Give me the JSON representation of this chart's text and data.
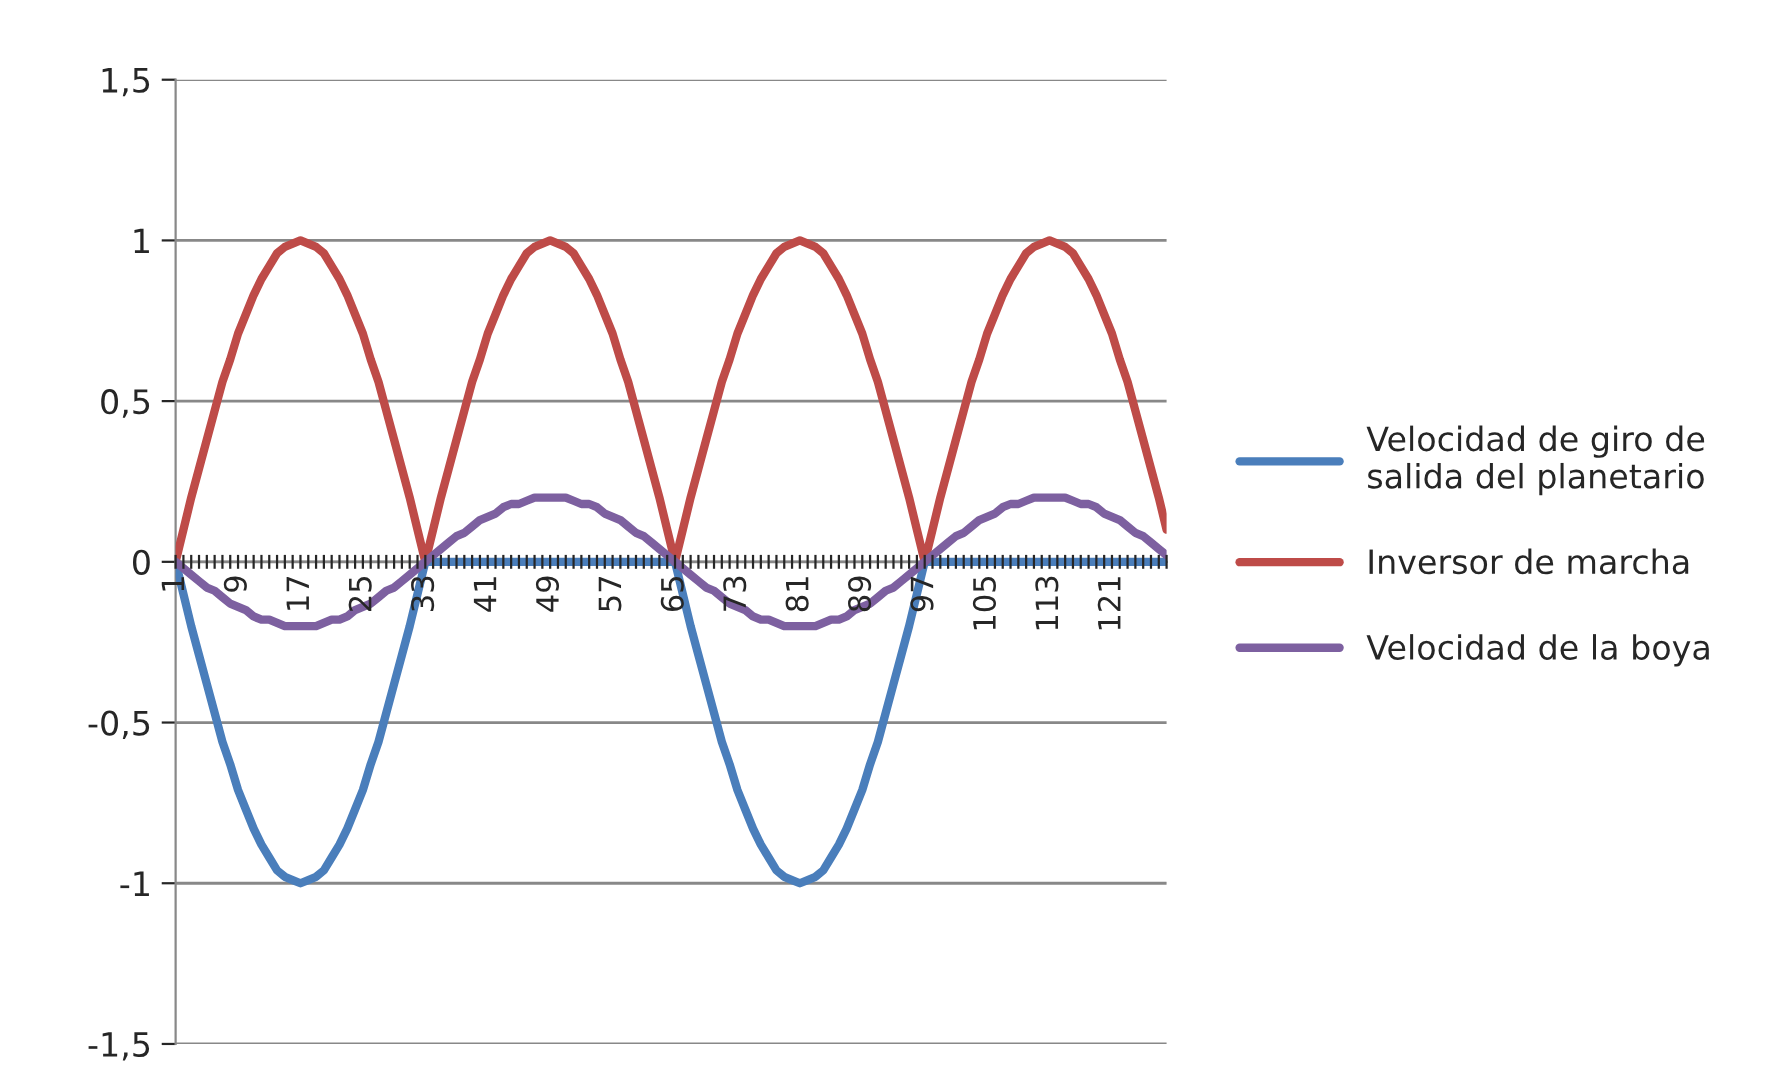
{
  "chart_data": {
    "type": "line",
    "categories": [
      "1",
      null,
      null,
      null,
      null,
      null,
      null,
      null,
      "9",
      null,
      null,
      null,
      null,
      null,
      null,
      null,
      "17",
      null,
      null,
      null,
      null,
      null,
      null,
      null,
      "25",
      null,
      null,
      null,
      null,
      null,
      null,
      null,
      "33",
      null,
      null,
      null,
      null,
      null,
      null,
      null,
      "41",
      null,
      null,
      null,
      null,
      null,
      null,
      null,
      "49",
      null,
      null,
      null,
      null,
      null,
      null,
      null,
      "57",
      null,
      null,
      null,
      null,
      null,
      null,
      null,
      "65",
      null,
      null,
      null,
      null,
      null,
      null,
      null,
      "73",
      null,
      null,
      null,
      null,
      null,
      null,
      null,
      "81",
      null,
      null,
      null,
      null,
      null,
      null,
      null,
      "89",
      null,
      null,
      null,
      null,
      null,
      null,
      null,
      "97",
      null,
      null,
      null,
      null,
      null,
      null,
      null,
      "105",
      null,
      null,
      null,
      null,
      null,
      null,
      null,
      "113",
      null,
      null,
      null,
      null,
      null,
      null,
      null,
      "121",
      null,
      null,
      null,
      null,
      null,
      null,
      null
    ],
    "series": [
      {
        "name": "Velocidad de giro de\nsalida del planetario",
        "color": "#4a7ebb",
        "values": [
          0,
          -0.1,
          -0.2,
          -0.29,
          -0.38,
          -0.47,
          -0.56,
          -0.63,
          -0.71,
          -0.77,
          -0.83,
          -0.88,
          -0.92,
          -0.96,
          -0.98,
          -0.99,
          -1,
          -0.99,
          -0.98,
          -0.96,
          -0.92,
          -0.88,
          -0.83,
          -0.77,
          -0.71,
          -0.63,
          -0.56,
          -0.47,
          -0.38,
          -0.29,
          -0.2,
          -0.1,
          0,
          0,
          0,
          0,
          0,
          0,
          0,
          0,
          0,
          0,
          0,
          0,
          0,
          0,
          0,
          0,
          0,
          0,
          0,
          0,
          0,
          0,
          0,
          0,
          0,
          0,
          0,
          0,
          0,
          0,
          0,
          0,
          0,
          -0.1,
          -0.2,
          -0.29,
          -0.38,
          -0.47,
          -0.56,
          -0.63,
          -0.71,
          -0.77,
          -0.83,
          -0.88,
          -0.92,
          -0.96,
          -0.98,
          -0.99,
          -1,
          -0.99,
          -0.98,
          -0.96,
          -0.92,
          -0.88,
          -0.83,
          -0.77,
          -0.71,
          -0.63,
          -0.56,
          -0.47,
          -0.38,
          -0.29,
          -0.2,
          -0.1,
          0,
          0,
          0,
          0,
          0,
          0,
          0,
          0,
          0,
          0,
          0,
          0,
          0,
          0,
          0,
          0,
          0,
          0,
          0,
          0,
          0,
          0,
          0,
          0,
          0,
          0,
          0,
          0,
          0,
          0,
          0,
          0
        ]
      },
      {
        "name": "Inversor de marcha",
        "color": "#be4b48",
        "values": [
          0,
          0.1,
          0.2,
          0.29,
          0.38,
          0.47,
          0.56,
          0.63,
          0.71,
          0.77,
          0.83,
          0.88,
          0.92,
          0.96,
          0.98,
          0.99,
          1,
          0.99,
          0.98,
          0.96,
          0.92,
          0.88,
          0.83,
          0.77,
          0.71,
          0.63,
          0.56,
          0.47,
          0.38,
          0.29,
          0.2,
          0.1,
          0,
          0.1,
          0.2,
          0.29,
          0.38,
          0.47,
          0.56,
          0.63,
          0.71,
          0.77,
          0.83,
          0.88,
          0.92,
          0.96,
          0.98,
          0.99,
          1,
          0.99,
          0.98,
          0.96,
          0.92,
          0.88,
          0.83,
          0.77,
          0.71,
          0.63,
          0.56,
          0.47,
          0.38,
          0.29,
          0.2,
          0.1,
          0,
          0.1,
          0.2,
          0.29,
          0.38,
          0.47,
          0.56,
          0.63,
          0.71,
          0.77,
          0.83,
          0.88,
          0.92,
          0.96,
          0.98,
          0.99,
          1,
          0.99,
          0.98,
          0.96,
          0.92,
          0.88,
          0.83,
          0.77,
          0.71,
          0.63,
          0.56,
          0.47,
          0.38,
          0.29,
          0.2,
          0.1,
          0,
          0.1,
          0.2,
          0.29,
          0.38,
          0.47,
          0.56,
          0.63,
          0.71,
          0.77,
          0.83,
          0.88,
          0.92,
          0.96,
          0.98,
          0.99,
          1,
          0.99,
          0.98,
          0.96,
          0.92,
          0.88,
          0.83,
          0.77,
          0.71,
          0.63,
          0.56,
          0.47,
          0.38,
          0.29,
          0.2,
          0.1
        ]
      },
      {
        "name": "Velocidad de la boya",
        "color": "#7d60a0",
        "values": [
          0,
          -0.02,
          -0.04,
          -0.06,
          -0.08,
          -0.09,
          -0.11,
          -0.13,
          -0.14,
          -0.15,
          -0.17,
          -0.18,
          -0.18,
          -0.19,
          -0.2,
          -0.2,
          -0.2,
          -0.2,
          -0.2,
          -0.19,
          -0.18,
          -0.18,
          -0.17,
          -0.15,
          -0.14,
          -0.13,
          -0.11,
          -0.09,
          -0.08,
          -0.06,
          -0.04,
          -0.02,
          0,
          0.02,
          0.04,
          0.06,
          0.08,
          0.09,
          0.11,
          0.13,
          0.14,
          0.15,
          0.17,
          0.18,
          0.18,
          0.19,
          0.2,
          0.2,
          0.2,
          0.2,
          0.2,
          0.19,
          0.18,
          0.18,
          0.17,
          0.15,
          0.14,
          0.13,
          0.11,
          0.09,
          0.08,
          0.06,
          0.04,
          0.02,
          0,
          -0.02,
          -0.04,
          -0.06,
          -0.08,
          -0.09,
          -0.11,
          -0.13,
          -0.14,
          -0.15,
          -0.17,
          -0.18,
          -0.18,
          -0.19,
          -0.2,
          -0.2,
          -0.2,
          -0.2,
          -0.2,
          -0.19,
          -0.18,
          -0.18,
          -0.17,
          -0.15,
          -0.14,
          -0.13,
          -0.11,
          -0.09,
          -0.08,
          -0.06,
          -0.04,
          -0.02,
          0,
          0.02,
          0.04,
          0.06,
          0.08,
          0.09,
          0.11,
          0.13,
          0.14,
          0.15,
          0.17,
          0.18,
          0.18,
          0.19,
          0.2,
          0.2,
          0.2,
          0.2,
          0.2,
          0.19,
          0.18,
          0.18,
          0.17,
          0.15,
          0.14,
          0.13,
          0.11,
          0.09,
          0.08,
          0.06,
          0.04,
          0.02
        ]
      }
    ],
    "ylim": [
      -1.5,
      1.5
    ],
    "yticks": [
      {
        "value": -1.5,
        "label": "-1,5"
      },
      {
        "value": -1,
        "label": "-1"
      },
      {
        "value": -0.5,
        "label": "-0,5"
      },
      {
        "value": 0,
        "label": "0"
      },
      {
        "value": 0.5,
        "label": "0,5"
      },
      {
        "value": 1,
        "label": "1"
      },
      {
        "value": 1.5,
        "label": "1,5"
      }
    ],
    "grid": "y",
    "legend": "right",
    "marker": "none",
    "line_style": "solid"
  }
}
